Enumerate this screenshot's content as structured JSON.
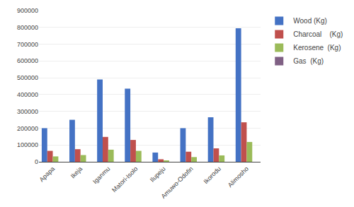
{
  "chart_data": {
    "type": "bar",
    "categories": [
      "Apapa",
      "Ikeja",
      "Iganmu",
      "Matori-Isolo",
      "Ilupeju",
      "Amuwo-Odofin",
      "Ikorodu",
      "Alimosho"
    ],
    "series": [
      {
        "name": "Wood (Kg)",
        "color": "#4472C4",
        "values": [
          200000,
          250000,
          490000,
          435000,
          55000,
          200000,
          265000,
          795000
        ]
      },
      {
        "name": "Charcoal    (Kg)",
        "color": "#C0504D",
        "values": [
          65000,
          75000,
          148000,
          130000,
          15000,
          60000,
          80000,
          235000
        ]
      },
      {
        "name": "Kerosene  (Kg)",
        "color": "#9BBB59",
        "values": [
          32000,
          40000,
          72000,
          65000,
          8000,
          28000,
          38000,
          118000
        ]
      },
      {
        "name": "Gas  (Kg)",
        "color": "#7F6084",
        "values": [
          0,
          0,
          0,
          0,
          0,
          0,
          0,
          0
        ]
      }
    ],
    "ylim": [
      0,
      900000
    ],
    "yticks": [
      0,
      100000,
      200000,
      300000,
      400000,
      500000,
      600000,
      700000,
      800000,
      900000
    ],
    "grid": true,
    "legend": "right"
  }
}
